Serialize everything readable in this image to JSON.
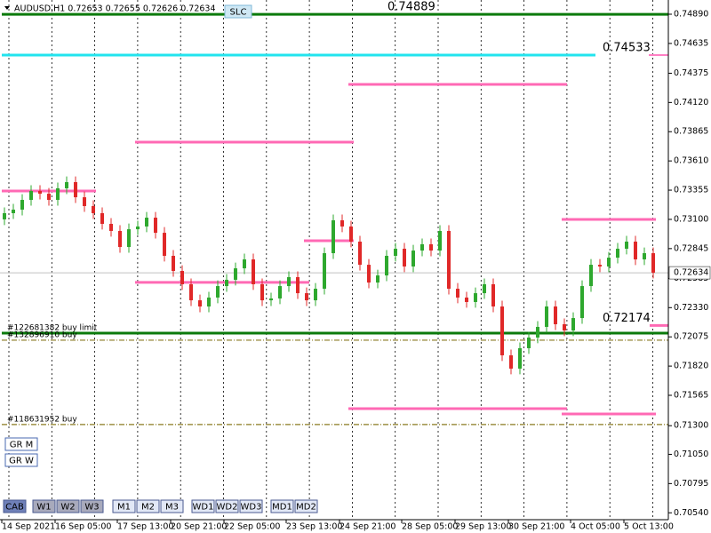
{
  "chart_data": {
    "type": "candlestick",
    "title": "AUDUSD,H1  0.72653 0.72655 0.72626 0.72634",
    "categories": [
      "14 Sep 2021",
      null,
      null,
      null,
      null,
      null,
      "16 Sep 05:00",
      null,
      null,
      null,
      null,
      null,
      null,
      "17 Sep 13:00",
      null,
      null,
      null,
      null,
      null,
      "20 Sep 21:00",
      null,
      null,
      null,
      null,
      null,
      "22 Sep 05:00",
      null,
      null,
      null,
      null,
      null,
      null,
      "23 Sep 13:00",
      null,
      null,
      null,
      null,
      null,
      "24 Sep 21:00",
      null,
      null,
      null,
      null,
      null,
      null,
      "28 Sep 05:00",
      null,
      null,
      null,
      null,
      null,
      "29 Sep 13:00",
      null,
      null,
      null,
      null,
      null,
      "30 Sep 21:00",
      null,
      null,
      null,
      null,
      null,
      null,
      "4 Oct 05:00",
      null,
      null,
      null,
      null,
      null,
      "5 Oct 13:00",
      null,
      null,
      null
    ],
    "open": [
      0.731,
      0.73154,
      0.73185,
      0.7327,
      0.73348,
      0.73324,
      0.7327,
      0.73371,
      0.73425,
      0.73293,
      0.73216,
      0.73154,
      0.73061,
      0.72999,
      0.72859,
      0.73014,
      0.73038,
      0.73115,
      0.72983,
      0.72782,
      0.7265,
      0.72534,
      0.72394,
      0.7234,
      0.72418,
      0.72518,
      0.72573,
      0.72673,
      0.72751,
      0.72534,
      0.72394,
      0.7241,
      0.72518,
      0.72596,
      0.72456,
      0.72394,
      0.72495,
      0.72805,
      0.73092,
      0.73038,
      0.72906,
      0.72704,
      0.72549,
      0.72611,
      0.72782,
      0.72844,
      0.72689,
      0.72828,
      0.72883,
      0.72828,
      0.72999,
      0.72495,
      0.72418,
      0.72379,
      0.72456,
      0.72534,
      0.7234,
      0.71914,
      0.71798,
      0.71976,
      0.72069,
      0.72162,
      0.7234,
      0.72185,
      0.72131,
      0.72239,
      0.72518,
      0.72704,
      0.72689,
      0.72766,
      0.72844,
      0.72906,
      0.72751,
      0.72805
    ],
    "high": [
      0.73204,
      0.73235,
      0.7332,
      0.73398,
      0.73398,
      0.73374,
      0.73421,
      0.73475,
      0.73475,
      0.73343,
      0.73266,
      0.73204,
      0.73111,
      0.73049,
      0.73064,
      0.73088,
      0.73165,
      0.73165,
      0.73033,
      0.72832,
      0.727,
      0.72584,
      0.72444,
      0.72468,
      0.72568,
      0.72623,
      0.72723,
      0.72801,
      0.72801,
      0.72584,
      0.7246,
      0.72568,
      0.72646,
      0.72646,
      0.72506,
      0.72545,
      0.72855,
      0.73142,
      0.73142,
      0.73088,
      0.72956,
      0.72754,
      0.72661,
      0.72832,
      0.72894,
      0.72894,
      0.72878,
      0.72933,
      0.72933,
      0.73049,
      0.73049,
      0.72545,
      0.72468,
      0.72506,
      0.72584,
      0.72584,
      0.7239,
      0.71964,
      0.72026,
      0.72119,
      0.72212,
      0.7239,
      0.7239,
      0.72235,
      0.72289,
      0.72568,
      0.72754,
      0.72754,
      0.72816,
      0.72894,
      0.72956,
      0.72956,
      0.72855,
      0.72855
    ],
    "low": [
      0.7305,
      0.73104,
      0.73135,
      0.7322,
      0.73274,
      0.7322,
      0.7322,
      0.73321,
      0.73243,
      0.73166,
      0.73104,
      0.73011,
      0.72949,
      0.72809,
      0.72809,
      0.72964,
      0.72988,
      0.72933,
      0.72732,
      0.726,
      0.72484,
      0.72344,
      0.7229,
      0.7229,
      0.72368,
      0.72468,
      0.72523,
      0.72623,
      0.72484,
      0.72344,
      0.72344,
      0.7236,
      0.72468,
      0.72406,
      0.72344,
      0.72344,
      0.72445,
      0.72755,
      0.72988,
      0.72856,
      0.72654,
      0.72499,
      0.72499,
      0.72561,
      0.72732,
      0.72639,
      0.72639,
      0.72778,
      0.72778,
      0.72778,
      0.72445,
      0.72368,
      0.72329,
      0.72329,
      0.72406,
      0.7229,
      0.71864,
      0.71748,
      0.71748,
      0.71926,
      0.72019,
      0.72112,
      0.72135,
      0.72081,
      0.72081,
      0.72189,
      0.72468,
      0.72639,
      0.72639,
      0.72716,
      0.72794,
      0.72701,
      0.72701,
      0.72585
    ],
    "close": [
      0.73154,
      0.73185,
      0.7327,
      0.73348,
      0.73324,
      0.7327,
      0.73371,
      0.73425,
      0.73293,
      0.73216,
      0.73154,
      0.73061,
      0.72999,
      0.72859,
      0.73014,
      0.73038,
      0.73115,
      0.72983,
      0.72782,
      0.7265,
      0.72534,
      0.72394,
      0.7234,
      0.72418,
      0.72518,
      0.72573,
      0.72673,
      0.72751,
      0.72534,
      0.72394,
      0.7241,
      0.72518,
      0.72596,
      0.72456,
      0.72394,
      0.72495,
      0.72805,
      0.73092,
      0.73038,
      0.72906,
      0.72704,
      0.72549,
      0.72611,
      0.72782,
      0.72844,
      0.72689,
      0.72828,
      0.72883,
      0.72828,
      0.72999,
      0.72495,
      0.72418,
      0.72379,
      0.72456,
      0.72534,
      0.7234,
      0.71914,
      0.71798,
      0.71976,
      0.72069,
      0.72162,
      0.7234,
      0.72185,
      0.72131,
      0.72239,
      0.72518,
      0.72704,
      0.72689,
      0.72766,
      0.72844,
      0.72906,
      0.72751,
      0.72805,
      0.72635
    ],
    "up_color": "#2ea82e",
    "down_color": "#e02828",
    "ylim": [
      0.7048,
      0.75014
    ],
    "yticks": [
      {
        "value": 0.7489,
        "label": "0.74890"
      },
      0.74635,
      0.74375,
      {
        "value": 0.7412,
        "label": "0.74120"
      },
      0.73865,
      {
        "value": 0.7361,
        "label": "0.73610"
      },
      0.73355,
      {
        "value": 0.731,
        "label": "0.73100"
      },
      0.72845,
      0.72585,
      {
        "value": 0.7233,
        "label": "0.72330"
      },
      0.72075,
      {
        "value": 0.7182,
        "label": "0.71820"
      },
      0.71565,
      {
        "value": 0.713,
        "label": "0.71300"
      },
      {
        "value": 0.7105,
        "label": "0.71050"
      },
      0.70795,
      {
        "value": 0.7054,
        "label": "0.70540"
      }
    ],
    "current_price": 0.72634,
    "levels": [
      {
        "value": 0.74889,
        "color": "#0b7a0b",
        "label_color": "#0b8a0b"
      },
      {
        "value": 0.74533,
        "color": "#22e4ee",
        "label_color": "#ff7fc4"
      },
      {
        "value": 0.72174,
        "color": "#ff69b4",
        "label_color": "#ff7fc4"
      }
    ],
    "segments": [
      {
        "value": 0.73348,
        "from": 0,
        "to": 10,
        "color": "#ff69b4"
      },
      {
        "value": 0.73774,
        "from": 15,
        "to": 39,
        "color": "#ff69b4"
      },
      {
        "value": 0.74278,
        "from": 39,
        "to": 63,
        "color": "#ff69b4"
      },
      {
        "value": 0.7255,
        "from": 15,
        "to": 34,
        "color": "#ff69b4"
      },
      {
        "value": 0.72914,
        "from": 34,
        "to": 39,
        "color": "#ff69b4"
      },
      {
        "value": 0.71449,
        "from": 39,
        "to": 63,
        "color": "#ff69b4"
      },
      {
        "value": 0.71402,
        "from": 63,
        "to": 73,
        "color": "#ff69b4"
      },
      {
        "value": 0.731,
        "from": 63,
        "to": 73,
        "color": "#ff69b4"
      }
    ],
    "orders": [
      {
        "value": 0.72108,
        "label": "#122681382 buy limit",
        "color": "#0b7a0b"
      },
      {
        "value": 0.72046,
        "label": "#132896910 buy",
        "color": "#8a7a20"
      },
      {
        "value": 0.7131,
        "label": "#118631952 buy",
        "color": "#8a7a20"
      }
    ]
  },
  "buttons": {
    "top": [
      "SLC"
    ],
    "side": [
      "GR M",
      "GR W"
    ],
    "bottom": [
      "CAB",
      "W1",
      "W2",
      "W3",
      "M1",
      "M2",
      "M3",
      "WD1",
      "WD2",
      "WD3",
      "MD1",
      "MD2"
    ]
  }
}
